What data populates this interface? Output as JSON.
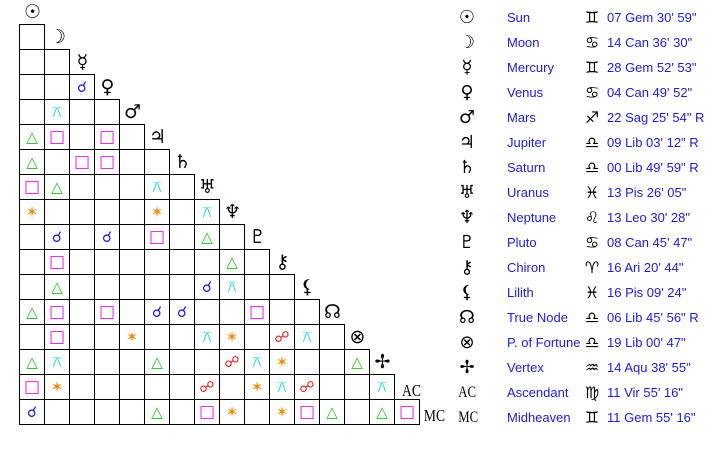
{
  "planets": [
    {
      "glyph": "☉",
      "name": "Sun",
      "sign_glyph": "♊",
      "position": "07 Gem 30' 59\""
    },
    {
      "glyph": "☽",
      "name": "Moon",
      "sign_glyph": "♋",
      "position": "14 Can 36' 30\""
    },
    {
      "glyph": "☿",
      "name": "Mercury",
      "sign_glyph": "♊",
      "position": "28 Gem 52' 53\""
    },
    {
      "glyph": "♀",
      "name": "Venus",
      "sign_glyph": "♋",
      "position": "04 Can 49' 52\""
    },
    {
      "glyph": "♂",
      "name": "Mars",
      "sign_glyph": "♐",
      "position": "22 Sag 25' 54\" R"
    },
    {
      "glyph": "♃",
      "name": "Jupiter",
      "sign_glyph": "♎",
      "position": "09 Lib 03' 12\" R"
    },
    {
      "glyph": "♄",
      "name": "Saturn",
      "sign_glyph": "♎",
      "position": "00 Lib 49' 59\" R"
    },
    {
      "glyph": "♅",
      "name": "Uranus",
      "sign_glyph": "♓",
      "position": "13 Pis 26' 05\""
    },
    {
      "glyph": "♆",
      "name": "Neptune",
      "sign_glyph": "♌",
      "position": "13 Leo 30' 28\""
    },
    {
      "glyph": "♇",
      "name": "Pluto",
      "sign_glyph": "♋",
      "position": "08 Can 45' 47\""
    },
    {
      "glyph": "⚷",
      "name": "Chiron",
      "sign_glyph": "♈",
      "position": "16 Ari 20' 44\""
    },
    {
      "glyph": "⚸",
      "name": "Lilith",
      "sign_glyph": "♓",
      "position": "16 Pis 09' 24\""
    },
    {
      "glyph": "☊",
      "name": "True Node",
      "sign_glyph": "♎",
      "position": "06 Lib 45' 56\" R"
    },
    {
      "glyph": "⊗",
      "name": "P. of Fortune",
      "sign_glyph": "♎",
      "position": "19 Lib 00' 47\""
    },
    {
      "glyph": "✢",
      "name": "Vertex",
      "sign_glyph": "♒",
      "position": "14 Aqu 38' 55\""
    },
    {
      "glyph": "AC",
      "name": "Ascendant",
      "sign_glyph": "♍",
      "position": "11 Vir 55' 16\""
    },
    {
      "glyph": "MC",
      "name": "Midheaven",
      "sign_glyph": "♊",
      "position": "11 Gem 55' 16\""
    }
  ],
  "aspect_symbols": {
    "conjunction": {
      "glyph": "☌",
      "color": "#1a1aee"
    },
    "opposition": {
      "glyph": "☍",
      "color": "#ee1a1a"
    },
    "trine": {
      "glyph": "△",
      "color": "#11cc11"
    },
    "square": {
      "glyph": "□",
      "color": "#ee11ee"
    },
    "sextile": {
      "glyph": "✶",
      "color": "#ff8800"
    },
    "quincunx": {
      "glyph": "⚻",
      "color": "#11dddd"
    }
  },
  "aspects": [
    [
      ""
    ],
    [
      "",
      ""
    ],
    [
      "",
      "",
      "conjunction"
    ],
    [
      "",
      "quincunx",
      "",
      ""
    ],
    [
      "trine",
      "square",
      "",
      "square",
      ""
    ],
    [
      "trine",
      "",
      "square",
      "square",
      "",
      ""
    ],
    [
      "square",
      "trine",
      "",
      "",
      "",
      "quincunx",
      ""
    ],
    [
      "sextile",
      "",
      "",
      "",
      "",
      "sextile",
      "",
      "quincunx"
    ],
    [
      "",
      "conjunction",
      "",
      "conjunction",
      "",
      "square",
      "",
      "trine",
      ""
    ],
    [
      "",
      "square",
      "",
      "",
      "",
      "",
      "",
      "",
      "trine",
      ""
    ],
    [
      "",
      "trine",
      "",
      "",
      "",
      "",
      "",
      "conjunction",
      "quincunx",
      "",
      ""
    ],
    [
      "trine",
      "square",
      "",
      "square",
      "",
      "conjunction",
      "conjunction",
      "",
      "",
      "square",
      "",
      ""
    ],
    [
      "",
      "square",
      "",
      "",
      "sextile",
      "",
      "",
      "quincunx",
      "sextile",
      "",
      "opposition",
      "quincunx",
      ""
    ],
    [
      "trine",
      "quincunx",
      "",
      "",
      "",
      "trine",
      "",
      "",
      "opposition",
      "quincunx",
      "sextile",
      "",
      "",
      "trine"
    ],
    [
      "square",
      "sextile",
      "",
      "",
      "",
      "",
      "",
      "opposition",
      "",
      "sextile",
      "quincunx",
      "opposition",
      "",
      "",
      "quincunx"
    ],
    [
      "conjunction",
      "",
      "",
      "",
      "",
      "trine",
      "",
      "square",
      "sextile",
      "",
      "sextile",
      "square",
      "trine",
      "",
      "trine",
      "square"
    ]
  ]
}
